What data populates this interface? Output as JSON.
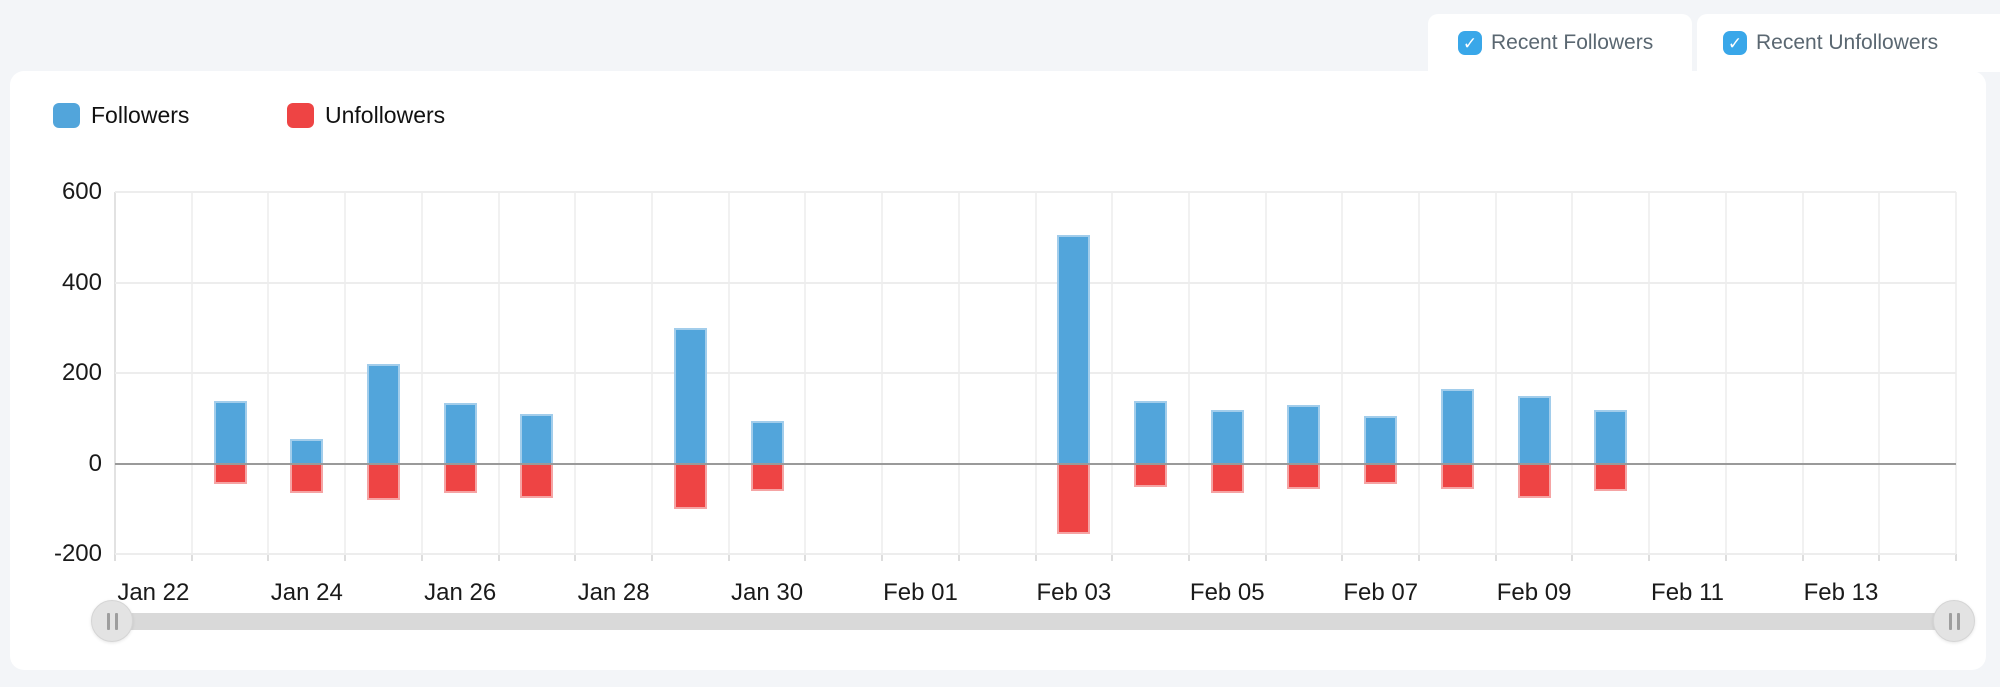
{
  "page": {
    "background": "#f3f5f8"
  },
  "filters": {
    "recent_followers": {
      "label": "Recent Followers",
      "checked": true
    },
    "recent_unfollowers": {
      "label": "Recent Unfollowers",
      "checked": true
    },
    "checkbox_color": "#39a7e9",
    "checkmark_icon": "✓"
  },
  "legend": [
    {
      "label": "Followers",
      "color": "#52a5db"
    },
    {
      "label": "Unfollowers",
      "color": "#ee4444"
    }
  ],
  "chart_data": {
    "type": "bar",
    "title": "",
    "xlabel": "",
    "ylabel": "",
    "categories": [
      "Jan 22",
      "Jan 23",
      "Jan 24",
      "Jan 25",
      "Jan 26",
      "Jan 27",
      "Jan 28",
      "Jan 29",
      "Jan 30",
      "Jan 31",
      "Feb 01",
      "Feb 02",
      "Feb 03",
      "Feb 04",
      "Feb 05",
      "Feb 06",
      "Feb 07",
      "Feb 08",
      "Feb 09",
      "Feb 10",
      "Feb 11",
      "Feb 12",
      "Feb 13",
      "Feb 14"
    ],
    "x_tick_labels": [
      "Jan 22",
      "Jan 24",
      "Jan 26",
      "Jan 28",
      "Jan 30",
      "Feb 01",
      "Feb 03",
      "Feb 05",
      "Feb 07",
      "Feb 09",
      "Feb 11",
      "Feb 13"
    ],
    "series": [
      {
        "name": "Followers",
        "color": "#52a5db",
        "border_color": "#a2cdeb",
        "values": [
          null,
          140,
          55,
          220,
          135,
          110,
          null,
          300,
          95,
          null,
          null,
          null,
          505,
          140,
          120,
          130,
          105,
          165,
          150,
          120,
          null,
          null,
          null,
          null
        ]
      },
      {
        "name": "Unfollowers",
        "color": "#ee4444",
        "border_color": "#f5a4a4",
        "values": [
          null,
          -45,
          -65,
          -80,
          -65,
          -75,
          null,
          -100,
          -60,
          null,
          null,
          null,
          -155,
          -50,
          -65,
          -55,
          -45,
          -55,
          -75,
          -60,
          null,
          null,
          null,
          null
        ]
      }
    ],
    "y_ticks": [
      600,
      400,
      200,
      0,
      -200
    ],
    "ylim": [
      -200,
      600
    ],
    "grid": true,
    "legend_position": "top-left",
    "zero_line_color": "#9a9a9a"
  },
  "slider": {
    "left_handle_icon": "grip-icon",
    "right_handle_icon": "grip-icon"
  }
}
